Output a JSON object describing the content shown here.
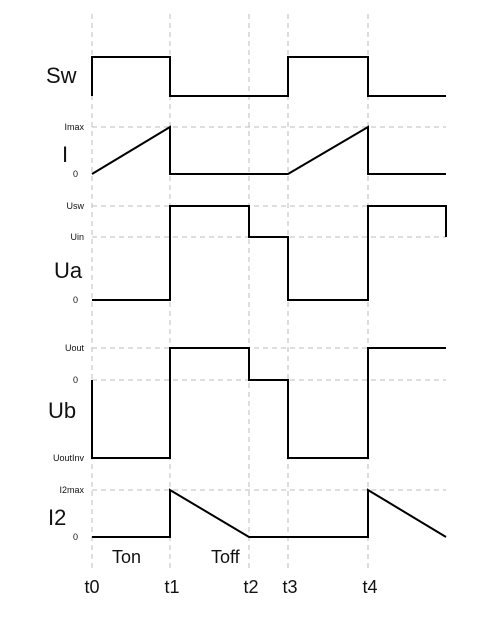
{
  "signals": {
    "sw": "Sw",
    "i": "I",
    "ua": "Ua",
    "ub": "Ub",
    "i2": "I2"
  },
  "levels": {
    "imax": "Imax",
    "i_zero": "0",
    "usw": "Usw",
    "uin": "Uin",
    "ua_zero": "0",
    "uout": "Uout",
    "ub_zero": "0",
    "uoutinv": "UoutInv",
    "i2max": "I2max",
    "i2_zero": "0"
  },
  "time_labels": {
    "t0": "t0",
    "t1": "t1",
    "t2": "t2",
    "t3": "t3",
    "t4": "t4"
  },
  "phases": {
    "ton": "Ton",
    "toff": "Toff"
  },
  "colors": {
    "waveform": "#000000",
    "guide": "#bdbdbd"
  }
}
